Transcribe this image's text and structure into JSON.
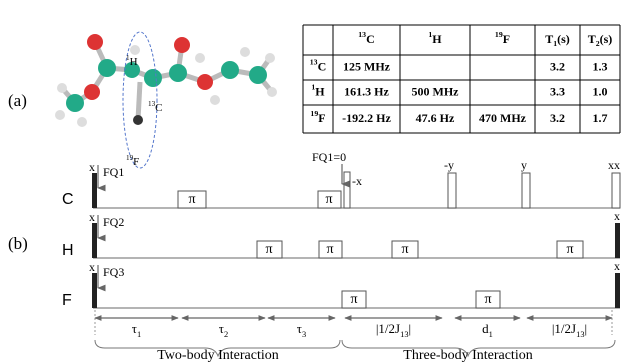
{
  "panel_a": {
    "label": "(a)",
    "molecule_labels": [
      {
        "sup": "1",
        "base": "H"
      },
      {
        "sup": "13",
        "base": "C"
      },
      {
        "sup": "19",
        "base": "F"
      }
    ]
  },
  "table": {
    "header": [
      null,
      {
        "sup": "13",
        "base": "C"
      },
      {
        "sup": "1",
        "base": "H"
      },
      {
        "sup": "19",
        "base": "F"
      },
      {
        "base": "T",
        "sub": "1",
        "tail": "(s)"
      },
      {
        "base": "T",
        "sub": "2",
        "tail": "(s)"
      }
    ],
    "rows": [
      [
        {
          "sup": "13",
          "base": "C"
        },
        "125 MHz",
        null,
        null,
        "3.2",
        "1.3"
      ],
      [
        {
          "sup": "1",
          "base": "H"
        },
        "161.3 Hz",
        "500 MHz",
        null,
        "3.3",
        "1.0"
      ],
      [
        {
          "sup": "19",
          "base": "F"
        },
        "-192.2 Hz",
        "47.6 Hz",
        "470 MHz",
        "3.2",
        "1.7"
      ]
    ]
  },
  "panel_b": {
    "label": "(b)",
    "channels": [
      "C",
      "H",
      "F"
    ],
    "pulse_symbol": "π",
    "phase_labels": [
      "x",
      "x",
      "x",
      "-x",
      "-y",
      "y",
      "xx",
      "x",
      "x"
    ],
    "frequency_labels": [
      "FQ1",
      "FQ2",
      "FQ3",
      "FQ1=0"
    ],
    "delays": [
      {
        "base": "τ",
        "sub": "1"
      },
      {
        "base": "τ",
        "sub": "2"
      },
      {
        "base": "τ",
        "sub": "3"
      },
      {
        "text": "|1/2J",
        "sub": "13",
        "tail": "|"
      },
      {
        "base": "d",
        "sub": "1"
      },
      {
        "text": "|1/2J",
        "sub": "13",
        "tail": "|"
      }
    ],
    "stages": [
      "Two-body Interaction",
      "Three-body Interaction"
    ]
  }
}
